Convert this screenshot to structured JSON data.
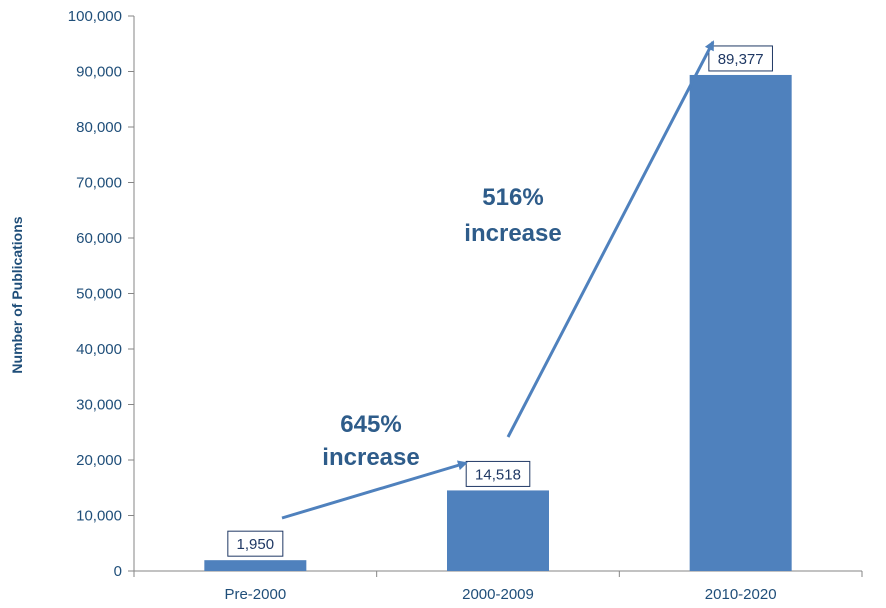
{
  "chart_data": {
    "type": "bar",
    "categories": [
      "Pre-2000",
      "2000-2009",
      "2010-2020"
    ],
    "values": [
      1950,
      14518,
      89377
    ],
    "value_labels": [
      "1,950",
      "14,518",
      "89,377"
    ],
    "ylabel": "Number of Publications",
    "xlabel": "",
    "ylim": [
      0,
      100000
    ],
    "yticks": [
      0,
      10000,
      20000,
      30000,
      40000,
      50000,
      60000,
      70000,
      80000,
      90000,
      100000
    ],
    "ytick_labels": [
      "0",
      "10,000",
      "20,000",
      "30,000",
      "40,000",
      "50,000",
      "60,000",
      "70,000",
      "80,000",
      "90,000",
      "100,000"
    ],
    "grid": false,
    "bar_color": "#4f81bd",
    "annotations": [
      {
        "from_category": 0,
        "to_category": 1,
        "lines": [
          "645%",
          "increase"
        ]
      },
      {
        "from_category": 1,
        "to_category": 2,
        "lines": [
          "516%",
          "increase"
        ]
      }
    ]
  }
}
